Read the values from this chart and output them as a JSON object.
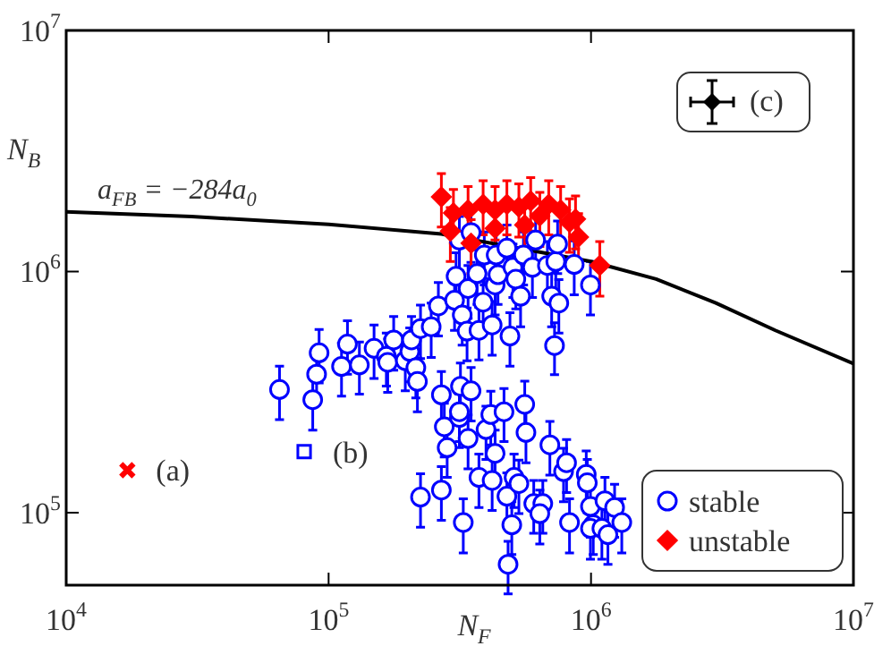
{
  "chart_data": {
    "type": "scatter",
    "xlabel": "N$_{F}$",
    "ylabel": "N$_{B}$",
    "log": "xy",
    "xlim": [
      10000,
      10000000
    ],
    "ylim": [
      50000,
      10000000
    ],
    "xticks": [
      {
        "value": 10000,
        "label": "10$^{4}$"
      },
      {
        "value": 100000,
        "label": "10$^{5}$"
      },
      {
        "value": 1000000,
        "label": "10$^{6}$"
      },
      {
        "value": 10000000,
        "label": "10$^{7}$"
      }
    ],
    "yticks": [
      {
        "value": 100000,
        "label": "10$^{5}$"
      },
      {
        "value": 1000000,
        "label": "10$^{6}$"
      },
      {
        "value": 10000000,
        "label": "10$^{7}$"
      }
    ],
    "legend": "bottom right",
    "series": [
      {
        "name": "stable",
        "type": "scatter",
        "color": "#0000ff",
        "marker": "circle",
        "x": [
          65000,
          87000,
          90000,
          92000,
          112000,
          118000,
          131000,
          149000,
          166000,
          168000,
          177000,
          196000,
          204000,
          207000,
          215000,
          218000,
          224000,
          246000,
          262000,
          302000,
          306000,
          315000,
          323000,
          340000,
          349000,
          337000,
          368000,
          374000,
          388000,
          392000,
          420000,
          431000,
          435000,
          442000,
          478000,
          491000,
          504000,
          517000,
          539000,
          553000,
          598000,
          615000,
          682000,
          708000,
          726000,
          734000,
          754000,
          746000,
          863000,
          995000,
          224000,
          269000,
          269000,
          276000,
          283000,
          315000,
          318000,
          340000,
          349000,
          315000,
          326000,
          374000,
          398000,
          415000,
          420000,
          431000,
          466000,
          478000,
          499000,
          483000,
          509000,
          531000,
          559000,
          565000,
          605000,
          655000,
          638000,
          697000,
          786000,
          807000,
          828000,
          959000,
          968000,
          995000,
          1020000,
          995000,
          1100000,
          1130000,
          1160000,
          1230000,
          1310000
        ],
        "values": [
          324000,
          294000,
          375000,
          460000,
          404000,
          500000,
          410000,
          480000,
          445000,
          420000,
          520000,
          427000,
          466000,
          520000,
          399000,
          350000,
          580000,
          590000,
          720000,
          760000,
          955000,
          1350000,
          660000,
          850000,
          1450000,
          566000,
          980000,
          570000,
          746000,
          1170000,
          600000,
          880000,
          1170000,
          970000,
          1250000,
          540000,
          1040000,
          930000,
          790000,
          1170000,
          1040000,
          1350000,
          1060000,
          790000,
          493000,
          1100000,
          740000,
          1300000,
          1070000,
          880000,
          116000,
          124000,
          308000,
          227000,
          186000,
          248000,
          334000,
          203000,
          320000,
          262000,
          91000,
          140000,
          221000,
          255000,
          136000,
          176000,
          262000,
          117000,
          89000,
          61000,
          140000,
          132000,
          281000,
          215000,
          109000,
          109000,
          99000,
          191000,
          148000,
          161000,
          91000,
          144000,
          133000,
          106000,
          89000,
          86000,
          86000,
          112000,
          81000,
          105000,
          91000
        ],
        "errors": [
          81000,
          74000,
          94000,
          115000,
          100000,
          125000,
          100000,
          120000,
          110000,
          105000,
          130000,
          107000,
          117000,
          130000,
          100000,
          88000,
          145000,
          150000,
          180000,
          190000,
          240000,
          340000,
          165000,
          210000,
          360000,
          140000,
          250000,
          140000,
          190000,
          290000,
          150000,
          220000,
          290000,
          240000,
          310000,
          135000,
          260000,
          230000,
          200000,
          290000,
          260000,
          340000,
          270000,
          200000,
          120000,
          270000,
          185000,
          320000,
          270000,
          220000,
          29000,
          31000,
          77000,
          57000,
          46000,
          62000,
          83000,
          51000,
          80000,
          65000,
          23000,
          35000,
          55000,
          64000,
          34000,
          44000,
          65000,
          29000,
          22000,
          15000,
          35000,
          33000,
          70000,
          54000,
          27000,
          27000,
          25000,
          48000,
          37000,
          40000,
          23000,
          36000,
          33000,
          27000,
          22000,
          22000,
          22000,
          28000,
          20000,
          26000,
          23000
        ]
      },
      {
        "name": "unstable",
        "type": "scatter",
        "color": "#ff0000",
        "marker": "diamond",
        "x": [
          269000,
          299000,
          340000,
          388000,
          431000,
          478000,
          531000,
          589000,
          638000,
          690000,
          766000,
          828000,
          873000,
          291000,
          431000,
          559000,
          896000,
          1080000,
          349000
        ],
        "values": [
          2040000,
          1750000,
          1800000,
          1900000,
          1800000,
          1900000,
          1850000,
          1960000,
          1700000,
          1900000,
          1800000,
          1600000,
          1650000,
          1470000,
          1510000,
          1560000,
          1390000,
          1060000,
          1310000
        ],
        "errors": [
          510000,
          440000,
          450000,
          480000,
          450000,
          480000,
          460000,
          490000,
          430000,
          480000,
          450000,
          400000,
          410000,
          370000,
          380000,
          390000,
          350000,
          270000,
          330000
        ]
      },
      {
        "type": "scatter",
        "color": "#ff0000",
        "marker": "cross",
        "x": [
          17100
        ],
        "values": [
          150000
        ]
      },
      {
        "type": "scatter",
        "color": "#0000ff",
        "marker": "square",
        "x": [
          80700
        ],
        "values": [
          179000
        ]
      },
      {
        "name": "a$_{FB}$ = −284a$_{0}$",
        "type": "line",
        "color": "#000000",
        "marker": "none",
        "x": [
          10000,
          30000,
          100000,
          269000,
          1000000,
          1770000,
          2990000,
          5040000,
          10000000
        ],
        "values": [
          1770000,
          1690000,
          1570000,
          1430000,
          1100000,
          930000,
          740000,
          570000,
          415000
        ]
      }
    ],
    "annotations": [
      {
        "text": "(a)",
        "x": 17100,
        "y": 150000
      },
      {
        "text": "(b)",
        "x": 80700,
        "y": 179000
      },
      "(c)"
    ]
  }
}
